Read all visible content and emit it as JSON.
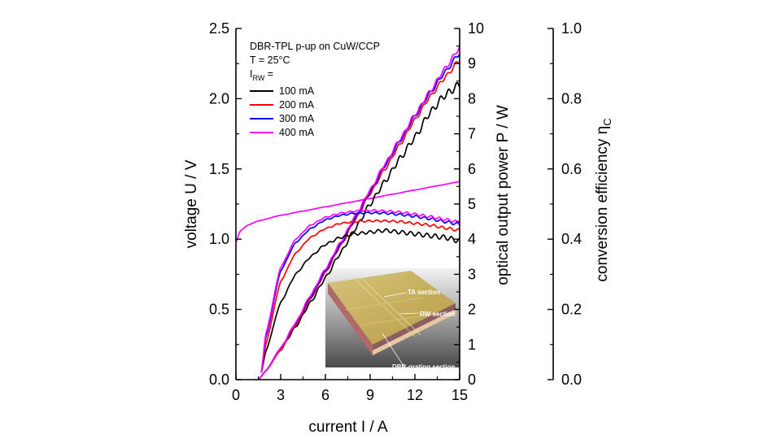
{
  "chart_data": {
    "type": "line",
    "xlabel": "current I / A",
    "ylabel_left": "voltage U / V",
    "ylabel_right1": "optical output power P / W",
    "ylabel_right2_main": "conversion efficiency η",
    "ylabel_right2_sub": "C",
    "xlim": [
      0,
      15
    ],
    "ylim_left": [
      0,
      2.5
    ],
    "ylim_right1": [
      0,
      10
    ],
    "ylim_right2": [
      0,
      1.0
    ],
    "xticks": [
      "0",
      "3",
      "6",
      "9",
      "12",
      "15"
    ],
    "yticks_left": [
      "0.0",
      "0.5",
      "1.0",
      "1.5",
      "2.0",
      "2.5"
    ],
    "yticks_right1": [
      "0",
      "1",
      "2",
      "3",
      "4",
      "5",
      "6",
      "7",
      "8",
      "9",
      "10"
    ],
    "yticks_right2": [
      "0.0",
      "0.2",
      "0.4",
      "0.6",
      "0.8",
      "1.0"
    ],
    "legend": {
      "line1": "DBR-TPL p-up on CuW/CCP",
      "line2": "T = 25°C",
      "line3_main": "I",
      "line3_sub": "RW",
      "line3_tail": " =",
      "entries": [
        {
          "label": "100 mA",
          "color": "#000000"
        },
        {
          "label": "200 mA",
          "color": "#ff0000"
        },
        {
          "label": "300 mA",
          "color": "#0000ff"
        },
        {
          "label": "400 mA",
          "color": "#ff00ff"
        }
      ]
    },
    "series": [
      {
        "quantity": "voltage",
        "axis": "left",
        "color": "#ff00ff",
        "x": [
          0,
          0.3,
          0.8,
          1.5,
          3,
          4.5,
          6,
          7.5,
          9,
          10.5,
          12,
          13.5,
          15
        ],
        "y": [
          0.98,
          1.06,
          1.1,
          1.13,
          1.17,
          1.2,
          1.23,
          1.26,
          1.29,
          1.32,
          1.35,
          1.38,
          1.41
        ]
      },
      {
        "quantity": "power",
        "axis": "right1",
        "label": "100 mA",
        "color": "#000000",
        "x": [
          1.5,
          2,
          3,
          4,
          5,
          6,
          7,
          8,
          9,
          10,
          11,
          12,
          13,
          14,
          15
        ],
        "y": [
          0,
          0.25,
          0.85,
          1.5,
          2.2,
          2.9,
          3.6,
          4.3,
          5.0,
          5.65,
          6.3,
          6.9,
          7.6,
          8.1,
          8.4
        ]
      },
      {
        "quantity": "power",
        "axis": "right1",
        "label": "200 mA",
        "color": "#ff0000",
        "x": [
          1.5,
          2,
          3,
          4,
          5,
          6,
          7,
          8,
          9,
          10,
          11,
          12,
          13,
          14,
          15
        ],
        "y": [
          0,
          0.25,
          0.85,
          1.55,
          2.3,
          3.05,
          3.8,
          4.55,
          5.3,
          6.0,
          6.7,
          7.4,
          8.05,
          8.6,
          9.1
        ]
      },
      {
        "quantity": "power",
        "axis": "right1",
        "label": "300 mA",
        "color": "#0000ff",
        "x": [
          1.5,
          2,
          3,
          4,
          5,
          6,
          7,
          8,
          9,
          10,
          11,
          12,
          13,
          14,
          15
        ],
        "y": [
          0,
          0.25,
          0.9,
          1.6,
          2.35,
          3.1,
          3.85,
          4.6,
          5.35,
          6.1,
          6.8,
          7.5,
          8.15,
          8.75,
          9.3
        ]
      },
      {
        "quantity": "power",
        "axis": "right1",
        "label": "400 mA",
        "color": "#ff00ff",
        "x": [
          1.5,
          2,
          3,
          4,
          5,
          6,
          7,
          8,
          9,
          10,
          11,
          12,
          13,
          14,
          15
        ],
        "y": [
          0,
          0.25,
          0.9,
          1.62,
          2.4,
          3.15,
          3.9,
          4.65,
          5.4,
          6.15,
          6.85,
          7.55,
          8.2,
          8.85,
          9.45
        ]
      },
      {
        "quantity": "efficiency",
        "axis": "right2",
        "label": "100 mA",
        "color": "#000000",
        "x": [
          1.7,
          2,
          3,
          4,
          5,
          6,
          7,
          8,
          9,
          10,
          11,
          12,
          13,
          14,
          15
        ],
        "y": [
          0.02,
          0.08,
          0.22,
          0.3,
          0.35,
          0.385,
          0.405,
          0.415,
          0.42,
          0.425,
          0.42,
          0.415,
          0.41,
          0.405,
          0.395
        ]
      },
      {
        "quantity": "efficiency",
        "axis": "right2",
        "label": "200 mA",
        "color": "#ff0000",
        "x": [
          1.7,
          2,
          3,
          4,
          5,
          6,
          7,
          8,
          9,
          10,
          11,
          12,
          13,
          14,
          15
        ],
        "y": [
          0.02,
          0.1,
          0.28,
          0.36,
          0.405,
          0.43,
          0.445,
          0.45,
          0.452,
          0.452,
          0.45,
          0.445,
          0.44,
          0.432,
          0.425
        ]
      },
      {
        "quantity": "efficiency",
        "axis": "right2",
        "label": "300 mA",
        "color": "#0000ff",
        "x": [
          1.7,
          2,
          3,
          4,
          5,
          6,
          7,
          8,
          9,
          10,
          11,
          12,
          13,
          14,
          15
        ],
        "y": [
          0.02,
          0.12,
          0.31,
          0.39,
          0.43,
          0.455,
          0.468,
          0.474,
          0.475,
          0.474,
          0.47,
          0.465,
          0.458,
          0.45,
          0.442
        ]
      },
      {
        "quantity": "efficiency",
        "axis": "right2",
        "label": "400 mA",
        "color": "#ff00ff",
        "x": [
          1.7,
          2,
          3,
          4,
          5,
          6,
          7,
          8,
          9,
          10,
          11,
          12,
          13,
          14,
          15
        ],
        "y": [
          0.02,
          0.13,
          0.32,
          0.4,
          0.44,
          0.462,
          0.474,
          0.48,
          0.482,
          0.48,
          0.477,
          0.471,
          0.464,
          0.456,
          0.448
        ]
      }
    ],
    "inset": {
      "labels": [
        "TA section",
        "RW section",
        "DBR-grating section"
      ]
    }
  }
}
